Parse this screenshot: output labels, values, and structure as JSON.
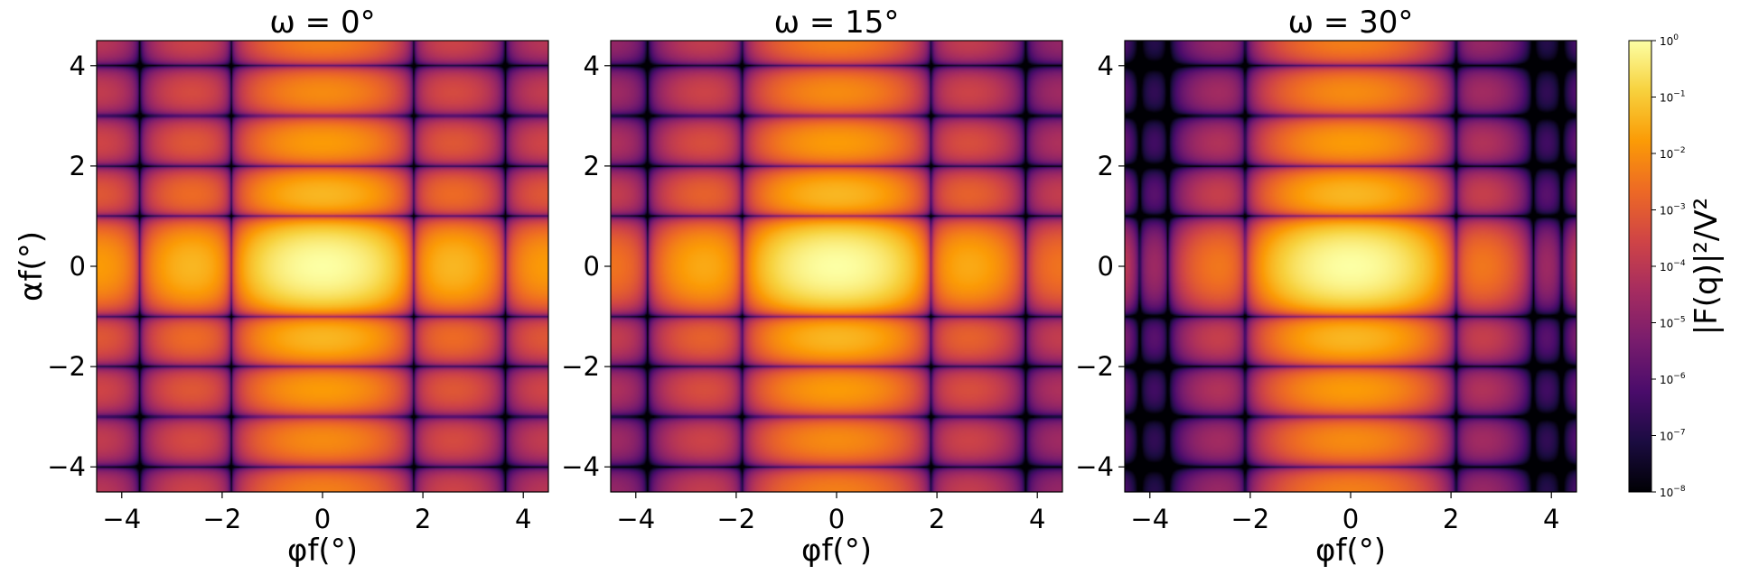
{
  "chart_data": [
    {
      "type": "heatmap",
      "title": "ω = 0°",
      "omega_deg": 0,
      "xlabel": "φf(°)",
      "ylabel": "αf(°)",
      "xlim": [
        -4.5,
        4.5
      ],
      "ylim": [
        -4.5,
        4.5
      ],
      "xticks": [
        -4,
        -2,
        0,
        2,
        4
      ],
      "yticks": [
        -4,
        -2,
        0,
        2,
        4
      ],
      "colormap": "inferno",
      "color_scale": "log",
      "description_values": {
        "peak_at": [
          0,
          0
        ],
        "peak_value": 1.0
      }
    },
    {
      "type": "heatmap",
      "title": "ω = 15°",
      "omega_deg": 15,
      "xlabel": "φf(°)",
      "xlim": [
        -4.5,
        4.5
      ],
      "ylim": [
        -4.5,
        4.5
      ],
      "xticks": [
        -4,
        -2,
        0,
        2,
        4
      ],
      "yticks": [
        -4,
        -2,
        0,
        2,
        4
      ],
      "colormap": "inferno",
      "color_scale": "log",
      "description_values": {
        "peak_at": [
          0,
          0
        ],
        "peak_value": 1.0
      }
    },
    {
      "type": "heatmap",
      "title": "ω = 30°",
      "omega_deg": 30,
      "xlabel": "φf(°)",
      "xlim": [
        -4.5,
        4.5
      ],
      "ylim": [
        -4.5,
        4.5
      ],
      "xticks": [
        -4,
        -2,
        0,
        2,
        4
      ],
      "yticks": [
        -4,
        -2,
        0,
        2,
        4
      ],
      "colormap": "inferno",
      "color_scale": "log",
      "description_values": {
        "peak_at": [
          0,
          0
        ],
        "peak_value": 1.0
      }
    }
  ],
  "colorbar": {
    "label": "|F(q)|²/V²",
    "scale": "log",
    "range": [
      1e-08,
      1
    ],
    "tick_exponents": [
      0,
      -1,
      -2,
      -3,
      -4,
      -5,
      -6,
      -7,
      -8
    ]
  },
  "colors": {
    "cmap_stops": [
      "#000004",
      "#1b0c41",
      "#4a0c6b",
      "#781c6d",
      "#a52c60",
      "#cf4446",
      "#ed6925",
      "#fb9b06",
      "#f7d13d",
      "#fcffa4"
    ]
  }
}
